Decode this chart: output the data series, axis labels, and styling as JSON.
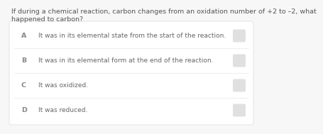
{
  "question_line1": "If during a chemical reaction, carbon changes from an oxidation number of +2 to –2, what",
  "question_line2": "happened to carbon?",
  "choices": [
    {
      "label": "A",
      "text": "It was in its elemental state from the start of the reaction."
    },
    {
      "label": "B",
      "text": "It was in its elemental form at the end of the reaction."
    },
    {
      "label": "C",
      "text": "It was oxidized."
    },
    {
      "label": "D",
      "text": "It was reduced."
    }
  ],
  "bg_color": "#f7f7f7",
  "card_color": "#ffffff",
  "card_border_color": "#e0e0e0",
  "question_color": "#555555",
  "label_color": "#888888",
  "text_color": "#666666",
  "radio_color": "#e0e0e0",
  "divider_color": "#e8e8e8",
  "question_fontsize": 6.8,
  "choice_fontsize": 6.5,
  "label_fontsize": 6.8
}
